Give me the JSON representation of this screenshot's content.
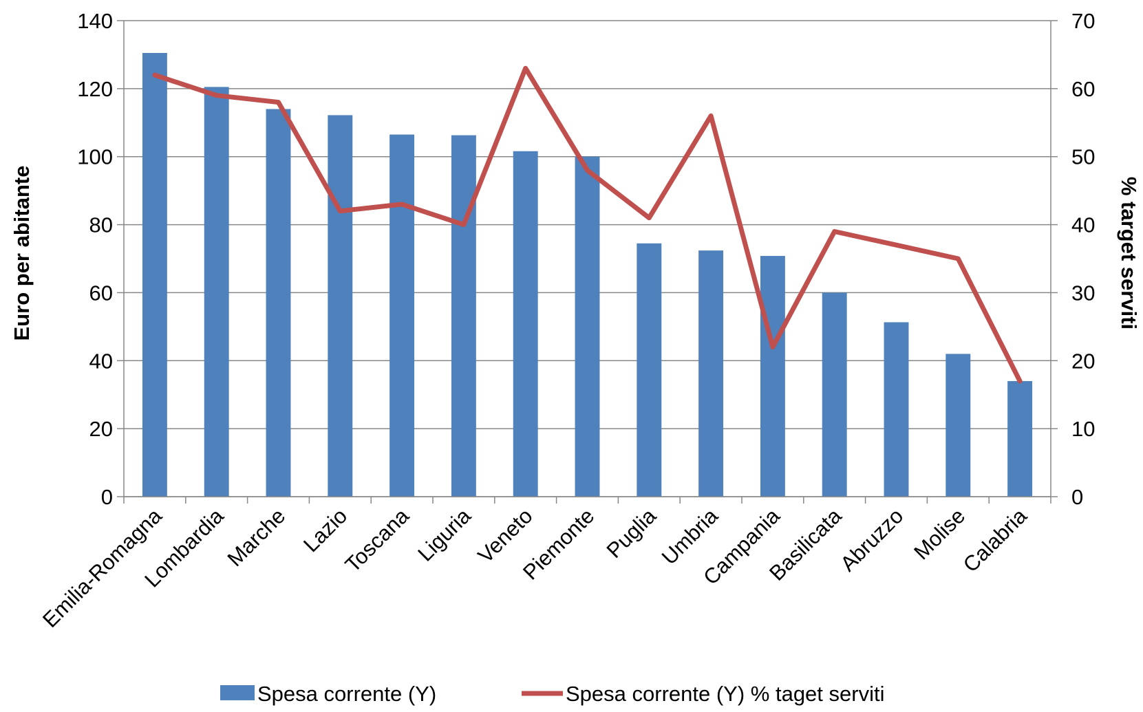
{
  "chart_data": {
    "type": "bar",
    "categories": [
      "Emilia-Romagna",
      "Lombardia",
      "Marche",
      "Lazio",
      "Toscana",
      "Liguria",
      "Veneto",
      "Piemonte",
      "Puglia",
      "Umbria",
      "Campania",
      "Basilicata",
      "Abruzzo",
      "Molise",
      "Calabria"
    ],
    "series": [
      {
        "name": "Spesa corrente (Y)",
        "type": "bar",
        "axis": "left",
        "color": "#4F81BD",
        "values": [
          130.5,
          120.5,
          114,
          112.2,
          106.5,
          106.3,
          101.6,
          100,
          74.5,
          72.4,
          70.8,
          60,
          51.3,
          42,
          34
        ]
      },
      {
        "name": "Spesa corrente (Y) % taget serviti",
        "type": "line",
        "axis": "right",
        "color": "#C0504D",
        "values": [
          62,
          59,
          58,
          42,
          43,
          40,
          63,
          48,
          41,
          56,
          22,
          39,
          37,
          35,
          17
        ]
      }
    ],
    "ylabel": "Euro per abitante",
    "y2label": "% target serviti",
    "ylim": [
      0,
      140
    ],
    "y2lim": [
      0,
      70
    ],
    "yticks": [
      "0",
      "20",
      "40",
      "60",
      "80",
      "100",
      "120",
      "140"
    ],
    "y2ticks": [
      "0",
      "10",
      "20",
      "30",
      "40",
      "50",
      "60",
      "70"
    ],
    "grid": true,
    "legend_position": "bottom"
  }
}
